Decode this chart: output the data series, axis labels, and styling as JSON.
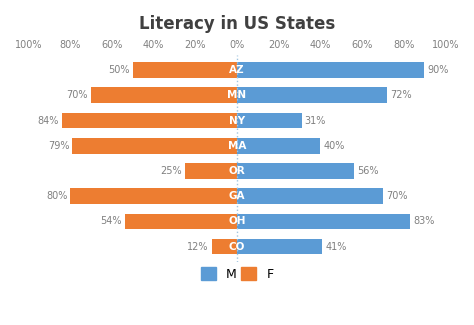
{
  "title": "Literacy in US States",
  "states": [
    "AZ",
    "MN",
    "NY",
    "MA",
    "OR",
    "GA",
    "OH",
    "CO"
  ],
  "male_values": [
    90,
    72,
    31,
    40,
    56,
    70,
    83,
    41
  ],
  "female_values": [
    50,
    70,
    84,
    79,
    25,
    80,
    54,
    12
  ],
  "male_color": "#5B9BD5",
  "female_color": "#ED7D31",
  "bar_height": 0.62,
  "xlim": [
    -100,
    100
  ],
  "xticks": [
    -100,
    -80,
    -60,
    -40,
    -20,
    0,
    20,
    40,
    60,
    80,
    100
  ],
  "xticklabels": [
    "100%",
    "80%",
    "60%",
    "40%",
    "20%",
    "0%",
    "20%",
    "40%",
    "60%",
    "80%",
    "100%"
  ],
  "background_color": "#ffffff",
  "title_fontsize": 12,
  "title_color": "#404040",
  "tick_fontsize": 7,
  "state_label_fontsize": 7.5,
  "value_label_fontsize": 7,
  "value_label_color": "#808080",
  "center_line_color": "#A0C4E0",
  "legend_fontsize": 9
}
